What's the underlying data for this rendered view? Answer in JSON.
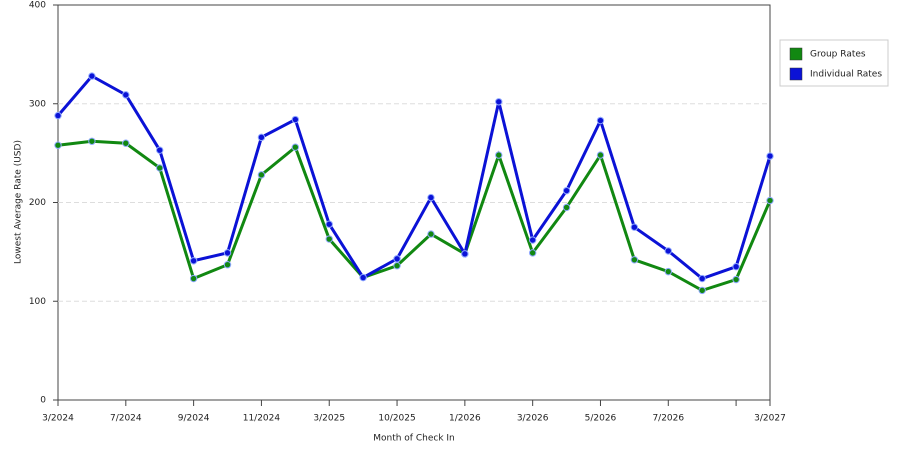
{
  "chart_data": {
    "type": "line",
    "x_label": "Month of Check In",
    "y_label": "Lowest Average Rate (USD)",
    "categories": [
      "3/2024",
      null,
      "7/2024",
      null,
      "9/2024",
      null,
      "11/2024",
      null,
      "3/2025",
      null,
      "10/2025",
      null,
      "1/2026",
      null,
      "3/2026",
      null,
      "5/2026",
      null,
      "7/2026",
      null,
      null,
      "3/2027"
    ],
    "series": [
      {
        "name": "Group Rates",
        "color": "#118811",
        "values": [
          258,
          262,
          260,
          235,
          123,
          137,
          228,
          256,
          163,
          124,
          136,
          168,
          148,
          248,
          149,
          195,
          248,
          142,
          130,
          111,
          122,
          202
        ]
      },
      {
        "name": "Individual Rates",
        "color": "#0b12d6",
        "values": [
          288,
          328,
          309,
          253,
          141,
          149,
          266,
          284,
          178,
          124,
          143,
          205,
          148,
          302,
          162,
          212,
          283,
          175,
          151,
          123,
          135,
          247
        ]
      }
    ],
    "ylim": [
      0,
      400
    ],
    "yticks": [
      0,
      100,
      200,
      300,
      400
    ],
    "grid": true,
    "legend": "right"
  }
}
